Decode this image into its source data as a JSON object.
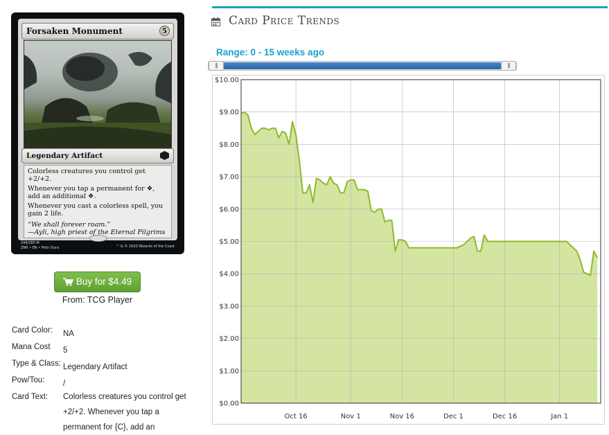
{
  "card": {
    "name": "Forsaken Monument",
    "mana": "5",
    "type_line": "Legendary Artifact",
    "rules_text": [
      "Colorless creatures you control get +2/+2.",
      "Whenever you tap a permanent for ❖, add an additional ❖.",
      "Whenever you cast a colorless spell, you gain 2 life."
    ],
    "flavor": [
      "“We shall forever roam.”",
      "—Ayli, high priest of the Eternal Pilgrims"
    ],
    "collector_line1": "244/280 M",
    "collector_line2": "ZNR • EN • Piotr Dura",
    "copyright": "™ & © 2020 Wizards of the Coast"
  },
  "buy": {
    "label": "Buy for $4.49",
    "from": "From: TCG Player",
    "color": "#6aad3b"
  },
  "details": [
    {
      "key": "Card Color:",
      "value": "NA"
    },
    {
      "key": "Mana Cost",
      "value": "5"
    },
    {
      "key": "Type & Class:",
      "value": "Legendary Artifact"
    },
    {
      "key": "Pow/Tou:",
      "value": "/"
    },
    {
      "key": "Card Text:",
      "value": "Colorless creatures you control get +2/+2. Whenever you tap a permanent for {C}, add an"
    }
  ],
  "panel": {
    "title": "Card Price Trends",
    "range_label": "Range: 0 - 15 weeks ago",
    "accent": "#17a3b8",
    "range_color": "#1aa0cf",
    "slider": {
      "min": 0,
      "max": 15,
      "low": 0,
      "high": 15
    }
  },
  "chart_data": {
    "type": "area",
    "y_ticks": [
      "$10.00",
      "$9.00",
      "$8.00",
      "$7.00",
      "$6.00",
      "$5.00",
      "$4.00",
      "$3.00",
      "$2.00",
      "$1.00",
      "$0.00"
    ],
    "ylim": [
      0,
      10
    ],
    "x_ticks": [
      {
        "label": "Oct 16",
        "day": 16
      },
      {
        "label": "Nov 1",
        "day": 32
      },
      {
        "label": "Nov 16",
        "day": 47
      },
      {
        "label": "Dec 1",
        "day": 62
      },
      {
        "label": "Dec 16",
        "day": 77
      },
      {
        "label": "Jan 1",
        "day": 93
      }
    ],
    "xlim": [
      0,
      105
    ],
    "grid": true,
    "line_color": "#8dbb29",
    "fill_color": "#d3e5a1",
    "series": [
      {
        "points": [
          [
            0,
            8.95
          ],
          [
            1,
            9.0
          ],
          [
            2,
            8.9
          ],
          [
            3,
            8.5
          ],
          [
            4,
            8.3
          ],
          [
            5,
            8.4
          ],
          [
            6,
            8.5
          ],
          [
            7,
            8.5
          ],
          [
            8,
            8.45
          ],
          [
            9,
            8.5
          ],
          [
            10,
            8.5
          ],
          [
            11,
            8.2
          ],
          [
            12,
            8.4
          ],
          [
            13,
            8.35
          ],
          [
            14,
            8.0
          ],
          [
            15,
            8.7
          ],
          [
            16,
            8.3
          ],
          [
            17,
            7.5
          ],
          [
            18,
            6.5
          ],
          [
            19,
            6.5
          ],
          [
            20,
            6.75
          ],
          [
            21,
            6.2
          ],
          [
            22,
            6.95
          ],
          [
            23,
            6.9
          ],
          [
            24,
            6.8
          ],
          [
            25,
            6.75
          ],
          [
            26,
            7.0
          ],
          [
            27,
            6.8
          ],
          [
            28,
            6.75
          ],
          [
            29,
            6.5
          ],
          [
            30,
            6.5
          ],
          [
            31,
            6.85
          ],
          [
            32,
            6.9
          ],
          [
            33,
            6.9
          ],
          [
            34,
            6.6
          ],
          [
            35,
            6.6
          ],
          [
            36,
            6.6
          ],
          [
            37,
            6.55
          ],
          [
            38,
            5.95
          ],
          [
            39,
            5.9
          ],
          [
            40,
            6.0
          ],
          [
            41,
            6.0
          ],
          [
            42,
            5.6
          ],
          [
            43,
            5.65
          ],
          [
            44,
            5.65
          ],
          [
            45,
            4.7
          ],
          [
            46,
            5.05
          ],
          [
            47,
            5.05
          ],
          [
            48,
            5.0
          ],
          [
            49,
            4.8
          ],
          [
            50,
            4.8
          ],
          [
            55,
            4.8
          ],
          [
            60,
            4.8
          ],
          [
            63,
            4.8
          ],
          [
            65,
            4.9
          ],
          [
            67,
            5.1
          ],
          [
            68,
            5.15
          ],
          [
            69,
            4.7
          ],
          [
            70,
            4.7
          ],
          [
            71,
            5.2
          ],
          [
            72,
            5.0
          ],
          [
            75,
            5.0
          ],
          [
            80,
            5.0
          ],
          [
            85,
            5.0
          ],
          [
            90,
            5.0
          ],
          [
            95,
            5.0
          ],
          [
            96,
            4.9
          ],
          [
            97,
            4.8
          ],
          [
            98,
            4.7
          ],
          [
            99,
            4.45
          ],
          [
            100,
            4.05
          ],
          [
            101,
            4.0
          ],
          [
            102,
            3.95
          ],
          [
            103,
            4.7
          ],
          [
            104,
            4.5
          ]
        ]
      }
    ]
  }
}
